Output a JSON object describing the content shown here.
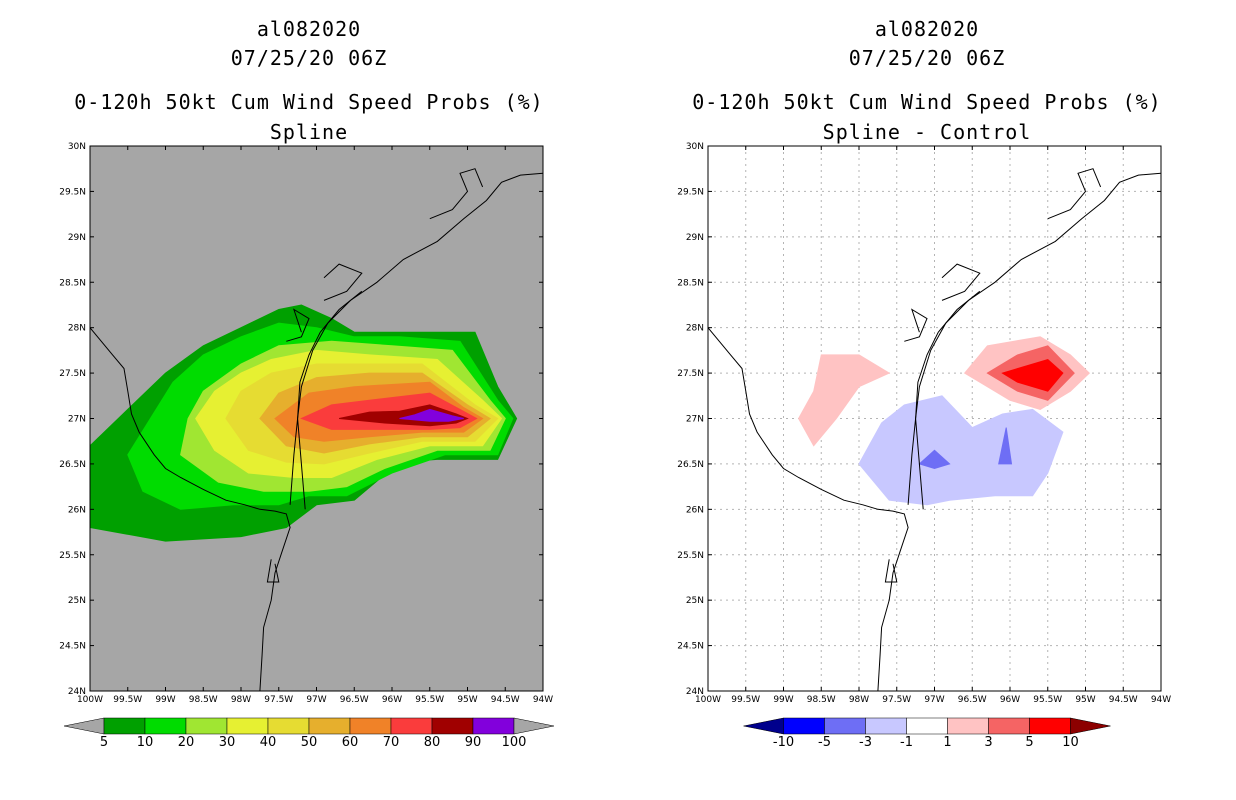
{
  "chart_data": [
    {
      "type": "contour-map",
      "storm_id": "al082020",
      "datetime": "07/25/20 06Z",
      "title": "0-120h 50kt Cum Wind Speed Probs (%)",
      "subtitle": "Spline",
      "lon_range": [
        -100,
        -94
      ],
      "lat_range": [
        24,
        30
      ],
      "x_tick_labels": [
        "100W",
        "99.5W",
        "99W",
        "98.5W",
        "98W",
        "97.5W",
        "97W",
        "96.5W",
        "96W",
        "95.5W",
        "95W",
        "94.5W",
        "94W"
      ],
      "y_tick_labels": [
        "24N",
        "24.5N",
        "25N",
        "25.5N",
        "26N",
        "26.5N",
        "27N",
        "27.5N",
        "28N",
        "28.5N",
        "29N",
        "29.5N",
        "30N"
      ],
      "grid": false,
      "legend": {
        "position": "bottom",
        "labels": [
          "5",
          "10",
          "20",
          "30",
          "40",
          "50",
          "60",
          "70",
          "80",
          "90",
          "100"
        ],
        "colors": [
          "#00a000",
          "#00dc00",
          "#a0e632",
          "#e6f032",
          "#e6dc32",
          "#e6af2d",
          "#f08228",
          "#fa3c3c",
          "#a00000",
          "#8200dc"
        ],
        "below_color": "#a6a6a6",
        "above_color": "#a6a6a6"
      },
      "contours": [
        {
          "level": 5,
          "color": "#00a000",
          "polygon": [
            [
              -100,
              26.7
            ],
            [
              -99.5,
              27.1
            ],
            [
              -99,
              27.5
            ],
            [
              -98.5,
              27.8
            ],
            [
              -98,
              28
            ],
            [
              -97.5,
              28.2
            ],
            [
              -97.2,
              28.25
            ],
            [
              -96.8,
              28.1
            ],
            [
              -96.5,
              27.95
            ],
            [
              -95.5,
              27.95
            ],
            [
              -94.9,
              27.95
            ],
            [
              -94.6,
              27.35
            ],
            [
              -94.35,
              27
            ],
            [
              -94.6,
              26.55
            ],
            [
              -95.4,
              26.55
            ],
            [
              -95.9,
              26.52
            ],
            [
              -96.5,
              26.1
            ],
            [
              -97,
              26.05
            ],
            [
              -97.4,
              25.8
            ],
            [
              -98,
              25.7
            ],
            [
              -99,
              25.65
            ],
            [
              -100,
              25.8
            ]
          ]
        },
        {
          "level": 10,
          "color": "#00dc00",
          "polygon": [
            [
              -99.5,
              26.6
            ],
            [
              -99.2,
              27
            ],
            [
              -98.9,
              27.4
            ],
            [
              -98.5,
              27.7
            ],
            [
              -98,
              27.9
            ],
            [
              -97.5,
              28.05
            ],
            [
              -97,
              28
            ],
            [
              -96.5,
              27.9
            ],
            [
              -95.9,
              27.9
            ],
            [
              -95.1,
              27.85
            ],
            [
              -94.6,
              27.2
            ],
            [
              -94.4,
              27
            ],
            [
              -94.6,
              26.6
            ],
            [
              -95.3,
              26.6
            ],
            [
              -96,
              26.4
            ],
            [
              -96.6,
              26.15
            ],
            [
              -97.1,
              26.15
            ],
            [
              -97.5,
              26.05
            ],
            [
              -98.1,
              26.05
            ],
            [
              -98.8,
              26
            ],
            [
              -99.3,
              26.2
            ]
          ]
        },
        {
          "level": 20,
          "color": "#a0e632",
          "polygon": [
            [
              -98.8,
              26.6
            ],
            [
              -98.7,
              27
            ],
            [
              -98.5,
              27.3
            ],
            [
              -98,
              27.6
            ],
            [
              -97.5,
              27.8
            ],
            [
              -96.8,
              27.85
            ],
            [
              -96,
              27.8
            ],
            [
              -95.2,
              27.75
            ],
            [
              -94.7,
              27.2
            ],
            [
              -94.5,
              27
            ],
            [
              -94.7,
              26.65
            ],
            [
              -95.4,
              26.65
            ],
            [
              -96.1,
              26.45
            ],
            [
              -96.6,
              26.25
            ],
            [
              -97.1,
              26.2
            ],
            [
              -97.7,
              26.2
            ],
            [
              -98.3,
              26.3
            ]
          ]
        },
        {
          "level": 30,
          "color": "#e6f032",
          "polygon": [
            [
              -98.6,
              27
            ],
            [
              -98.35,
              27.3
            ],
            [
              -98,
              27.5
            ],
            [
              -97.6,
              27.65
            ],
            [
              -97,
              27.75
            ],
            [
              -96.3,
              27.7
            ],
            [
              -95.4,
              27.65
            ],
            [
              -94.8,
              27.2
            ],
            [
              -94.55,
              27
            ],
            [
              -94.8,
              26.7
            ],
            [
              -95.5,
              26.7
            ],
            [
              -96.2,
              26.55
            ],
            [
              -96.8,
              26.35
            ],
            [
              -97.3,
              26.35
            ],
            [
              -97.9,
              26.4
            ],
            [
              -98.35,
              26.65
            ]
          ]
        },
        {
          "level": 40,
          "color": "#e6dc32",
          "polygon": [
            [
              -98.2,
              27
            ],
            [
              -98,
              27.3
            ],
            [
              -97.6,
              27.5
            ],
            [
              -97,
              27.6
            ],
            [
              -96.3,
              27.6
            ],
            [
              -95.6,
              27.6
            ],
            [
              -94.9,
              27.15
            ],
            [
              -94.6,
              27
            ],
            [
              -94.9,
              26.75
            ],
            [
              -95.6,
              26.75
            ],
            [
              -96.3,
              26.62
            ],
            [
              -96.9,
              26.5
            ],
            [
              -97.4,
              26.52
            ],
            [
              -97.9,
              26.65
            ]
          ]
        },
        {
          "level": 50,
          "color": "#e6af2d",
          "polygon": [
            [
              -97.75,
              27
            ],
            [
              -97.5,
              27.28
            ],
            [
              -97,
              27.45
            ],
            [
              -96.3,
              27.5
            ],
            [
              -95.6,
              27.5
            ],
            [
              -95,
              27.15
            ],
            [
              -94.7,
              27
            ],
            [
              -95,
              26.8
            ],
            [
              -95.6,
              26.8
            ],
            [
              -96.3,
              26.72
            ],
            [
              -96.9,
              26.62
            ],
            [
              -97.4,
              26.7
            ]
          ]
        },
        {
          "level": 60,
          "color": "#f08228",
          "polygon": [
            [
              -97.55,
              27
            ],
            [
              -97.1,
              27.28
            ],
            [
              -96.5,
              27.35
            ],
            [
              -95.5,
              27.4
            ],
            [
              -95.05,
              27.12
            ],
            [
              -94.8,
              27
            ],
            [
              -95.05,
              26.85
            ],
            [
              -95.6,
              26.85
            ],
            [
              -96.3,
              26.8
            ],
            [
              -96.9,
              26.75
            ],
            [
              -97.3,
              26.8
            ]
          ]
        },
        {
          "level": 70,
          "color": "#fa3c3c",
          "polygon": [
            [
              -97.2,
              27
            ],
            [
              -96.8,
              27.15
            ],
            [
              -96.3,
              27.2
            ],
            [
              -95.5,
              27.28
            ],
            [
              -95.1,
              27.1
            ],
            [
              -94.88,
              27
            ],
            [
              -95.1,
              26.9
            ],
            [
              -95.5,
              26.88
            ],
            [
              -96.1,
              26.88
            ],
            [
              -96.8,
              26.88
            ]
          ]
        },
        {
          "level": 80,
          "color": "#a00000",
          "polygon": [
            [
              -96.7,
              27
            ],
            [
              -96.3,
              27.07
            ],
            [
              -95.9,
              27.08
            ],
            [
              -95.5,
              27.15
            ],
            [
              -95.15,
              27.05
            ],
            [
              -95,
              27
            ],
            [
              -95.15,
              26.95
            ],
            [
              -95.5,
              26.92
            ],
            [
              -96.1,
              26.95
            ]
          ]
        },
        {
          "level": 90,
          "color": "#8200dc",
          "polygon": [
            [
              -95.9,
              27
            ],
            [
              -95.7,
              27.04
            ],
            [
              -95.5,
              27.1
            ],
            [
              -95.2,
              27.03
            ],
            [
              -95.05,
              27
            ],
            [
              -95.25,
              26.97
            ],
            [
              -95.5,
              26.97
            ]
          ]
        }
      ]
    },
    {
      "type": "contour-map",
      "storm_id": "al082020",
      "datetime": "07/25/20 06Z",
      "title": "0-120h 50kt Cum Wind Speed Probs (%)",
      "subtitle": "Spline - Control",
      "lon_range": [
        -100,
        -94
      ],
      "lat_range": [
        24,
        30
      ],
      "x_tick_labels": [
        "100W",
        "99.5W",
        "99W",
        "98.5W",
        "98W",
        "97.5W",
        "97W",
        "96.5W",
        "96W",
        "95.5W",
        "95W",
        "94.5W",
        "94W"
      ],
      "y_tick_labels": [
        "24N",
        "24.5N",
        "25N",
        "25.5N",
        "26N",
        "26.5N",
        "27N",
        "27.5N",
        "28N",
        "28.5N",
        "29N",
        "29.5N",
        "30N"
      ],
      "grid": true,
      "legend": {
        "position": "bottom",
        "labels": [
          "-10",
          "-5",
          "-3",
          "-1",
          "1",
          "3",
          "5",
          "10"
        ],
        "colors": [
          "#0000ff",
          "#6e6ef5",
          "#c8c8ff",
          "#ffffff",
          "#ffc3c3",
          "#f56464",
          "#ff0000"
        ],
        "below_color": "#00008c",
        "above_color": "#8c0000"
      },
      "contours": [
        {
          "level": 1,
          "color": "#ffc3c3",
          "polygon": [
            [
              -98.8,
              27
            ],
            [
              -98.6,
              27.3
            ],
            [
              -98.5,
              27.7
            ],
            [
              -98,
              27.7
            ],
            [
              -97.6,
              27.5
            ],
            [
              -98,
              27.35
            ],
            [
              -98.3,
              27
            ],
            [
              -98.6,
              26.7
            ]
          ]
        },
        {
          "level": 1,
          "color": "#ffc3c3",
          "polygon": [
            [
              -96.6,
              27.5
            ],
            [
              -96.3,
              27.8
            ],
            [
              -95.6,
              27.9
            ],
            [
              -95.2,
              27.7
            ],
            [
              -94.95,
              27.5
            ],
            [
              -95.2,
              27.3
            ],
            [
              -95.6,
              27.1
            ],
            [
              -96,
              27.2
            ]
          ]
        },
        {
          "level": 3,
          "color": "#f56464",
          "polygon": [
            [
              -96.3,
              27.5
            ],
            [
              -95.9,
              27.7
            ],
            [
              -95.5,
              27.8
            ],
            [
              -95.15,
              27.5
            ],
            [
              -95.5,
              27.2
            ],
            [
              -95.9,
              27.3
            ]
          ]
        },
        {
          "level": 5,
          "color": "#ff0000",
          "polygon": [
            [
              -96.1,
              27.5
            ],
            [
              -95.5,
              27.65
            ],
            [
              -95.3,
              27.5
            ],
            [
              -95.5,
              27.3
            ],
            [
              -95.9,
              27.4
            ]
          ]
        },
        {
          "level": -1,
          "color": "#c8c8ff",
          "polygon": [
            [
              -98,
              26.5
            ],
            [
              -97.7,
              26.95
            ],
            [
              -97.4,
              27.15
            ],
            [
              -96.9,
              27.25
            ],
            [
              -96.5,
              26.9
            ],
            [
              -96.1,
              27.05
            ],
            [
              -95.7,
              27.1
            ],
            [
              -95.3,
              26.85
            ],
            [
              -95.5,
              26.4
            ],
            [
              -95.7,
              26.15
            ],
            [
              -96.2,
              26.15
            ],
            [
              -96.8,
              26.1
            ],
            [
              -97.1,
              26.05
            ],
            [
              -97.6,
              26.1
            ]
          ]
        },
        {
          "level": -3,
          "color": "#6e6ef5",
          "polygon": [
            [
              -97.2,
              26.5
            ],
            [
              -97,
              26.65
            ],
            [
              -96.8,
              26.5
            ],
            [
              -97,
              26.45
            ]
          ]
        },
        {
          "level": -3,
          "color": "#6e6ef5",
          "polygon": [
            [
              -96.15,
              26.5
            ],
            [
              -96.05,
              26.9
            ],
            [
              -95.98,
              26.5
            ]
          ]
        }
      ]
    }
  ]
}
